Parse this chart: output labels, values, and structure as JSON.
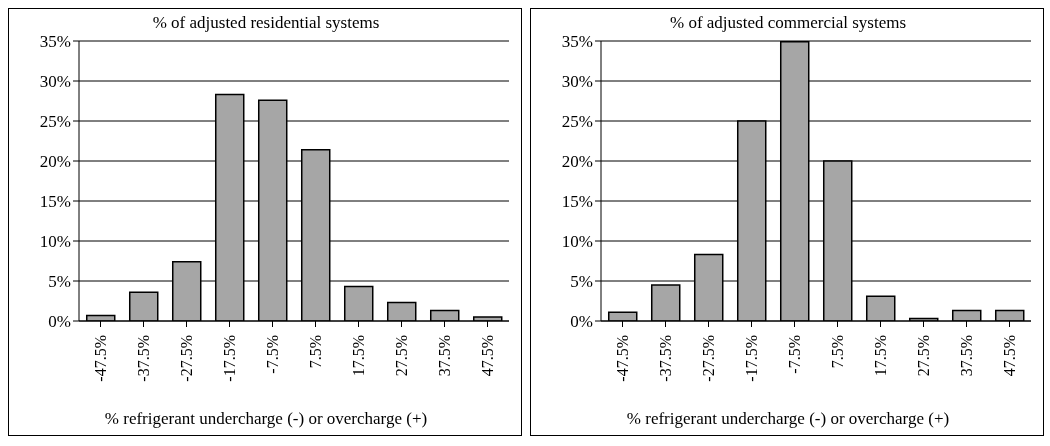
{
  "chart_data": [
    {
      "type": "bar",
      "title": "% of adjusted residential systems",
      "xlabel": "% refrigerant undercharge (-) or overcharge (+)",
      "categories": [
        "-47.5%",
        "-37.5%",
        "-27.5%",
        "-17.5%",
        "-7.5%",
        "7.5%",
        "17.5%",
        "27.5%",
        "37.5%",
        "47.5%"
      ],
      "values": [
        0.7,
        3.6,
        7.4,
        28.3,
        27.6,
        21.4,
        4.3,
        2.3,
        1.3,
        0.5
      ],
      "color": "#a6a6a6",
      "ylim": [
        0,
        35
      ],
      "yticks": [
        {
          "value": 0,
          "label": "0%"
        },
        {
          "value": 5,
          "label": "5%"
        },
        {
          "value": 10,
          "label": "10%"
        },
        {
          "value": 15,
          "label": "15%"
        },
        {
          "value": 20,
          "label": "20%"
        },
        {
          "value": 25,
          "label": "25%"
        },
        {
          "value": 30,
          "label": "30%"
        },
        {
          "value": 35,
          "label": "35%"
        }
      ],
      "grid": "y"
    },
    {
      "type": "bar",
      "title": "% of adjusted commercial systems",
      "xlabel": "% refrigerant undercharge (-) or overcharge (+)",
      "categories": [
        "-47.5%",
        "-37.5%",
        "-27.5%",
        "-17.5%",
        "-7.5%",
        "7.5%",
        "17.5%",
        "27.5%",
        "37.5%",
        "47.5%"
      ],
      "values": [
        1.1,
        4.5,
        8.3,
        25,
        34.9,
        20,
        3.1,
        0.3,
        1.3,
        1.3
      ],
      "color": "#a6a6a6",
      "ylim": [
        0,
        35
      ],
      "yticks": [
        {
          "value": 0,
          "label": "0%"
        },
        {
          "value": 5,
          "label": "5%"
        },
        {
          "value": 10,
          "label": "10%"
        },
        {
          "value": 15,
          "label": "15%"
        },
        {
          "value": 20,
          "label": "20%"
        },
        {
          "value": 25,
          "label": "25%"
        },
        {
          "value": 30,
          "label": "30%"
        },
        {
          "value": 35,
          "label": "35%"
        }
      ],
      "grid": "y"
    }
  ]
}
